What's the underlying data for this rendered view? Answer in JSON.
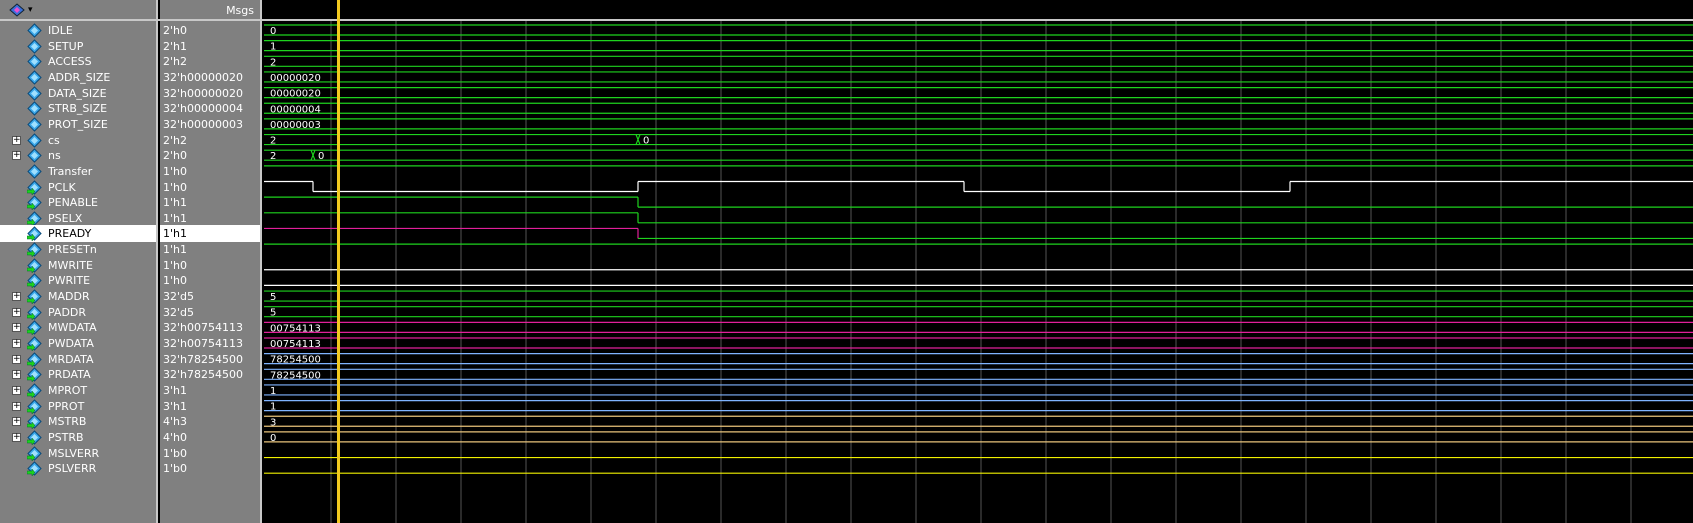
{
  "header": {
    "msgs_label": "Msgs",
    "toolbar_icon": "wave-window-icon"
  },
  "colors": {
    "background": "#000000",
    "panel": "#808080",
    "green": "#1ed31e",
    "white": "#ffffff",
    "magenta": "#e0209a",
    "cursor": "#f2c91f",
    "grid": "#555555"
  },
  "signals": [
    {
      "name": "IDLE",
      "value": "2'h0",
      "kind": "param",
      "wave_label": "0",
      "expandable": false,
      "color": "#1ed31e"
    },
    {
      "name": "SETUP",
      "value": "2'h1",
      "kind": "param",
      "wave_label": "1",
      "expandable": false,
      "color": "#1ed31e"
    },
    {
      "name": "ACCESS",
      "value": "2'h2",
      "kind": "param",
      "wave_label": "2",
      "expandable": false,
      "color": "#1ed31e"
    },
    {
      "name": "ADDR_SIZE",
      "value": "32'h00000020",
      "kind": "param",
      "wave_label": "00000020",
      "expandable": false,
      "color": "#1ed31e"
    },
    {
      "name": "DATA_SIZE",
      "value": "32'h00000020",
      "kind": "param",
      "wave_label": "00000020",
      "expandable": false,
      "color": "#1ed31e"
    },
    {
      "name": "STRB_SIZE",
      "value": "32'h00000004",
      "kind": "param",
      "wave_label": "00000004",
      "expandable": false,
      "color": "#1ed31e"
    },
    {
      "name": "PROT_SIZE",
      "value": "32'h00000003",
      "kind": "param",
      "wave_label": "00000003",
      "expandable": false,
      "color": "#1ed31e"
    },
    {
      "name": "cs",
      "value": "2'h2",
      "kind": "bus",
      "wave_label": "2",
      "expandable": true,
      "color": "#1ed31e",
      "change_label": "0"
    },
    {
      "name": "ns",
      "value": "2'h0",
      "kind": "bus",
      "wave_label": "2",
      "expandable": true,
      "color": "#1ed31e",
      "change_label": "0"
    },
    {
      "name": "Transfer",
      "value": "1'h0",
      "kind": "bit",
      "expandable": false,
      "color": "#1ed31e"
    },
    {
      "name": "PCLK",
      "value": "1'h0",
      "kind": "clock",
      "expandable": false,
      "color": "#ffffff"
    },
    {
      "name": "PENABLE",
      "value": "1'h1",
      "kind": "input",
      "expandable": false,
      "color": "#1ed31e"
    },
    {
      "name": "PSELX",
      "value": "1'h1",
      "kind": "input",
      "expandable": false,
      "color": "#1ed31e"
    },
    {
      "name": "PREADY",
      "value": "1'h1",
      "kind": "input",
      "expandable": false,
      "color": "#e0209a",
      "selected": true
    },
    {
      "name": "PRESETn",
      "value": "1'h1",
      "kind": "input",
      "expandable": false,
      "color": "#1ed31e"
    },
    {
      "name": "MWRITE",
      "value": "1'h0",
      "kind": "input",
      "expandable": false,
      "color": "#ffffff"
    },
    {
      "name": "PWRITE",
      "value": "1'h0",
      "kind": "input",
      "expandable": false,
      "color": "#ffffff"
    },
    {
      "name": "MADDR",
      "value": "32'd5",
      "kind": "input",
      "wave_label": "5",
      "expandable": true,
      "color": "#1ed31e"
    },
    {
      "name": "PADDR",
      "value": "32'd5",
      "kind": "input",
      "wave_label": "5",
      "expandable": true,
      "color": "#1ed31e"
    },
    {
      "name": "MWDATA",
      "value": "32'h00754113",
      "kind": "input",
      "wave_label": "00754113",
      "expandable": true,
      "color": "#e0209a"
    },
    {
      "name": "PWDATA",
      "value": "32'h00754113",
      "kind": "input",
      "wave_label": "00754113",
      "expandable": true,
      "color": "#e0209a"
    },
    {
      "name": "MRDATA",
      "value": "32'h78254500",
      "kind": "input",
      "wave_label": "78254500",
      "expandable": true,
      "color": "#7fb3ff"
    },
    {
      "name": "PRDATA",
      "value": "32'h78254500",
      "kind": "input",
      "wave_label": "78254500",
      "expandable": true,
      "color": "#7fb3ff"
    },
    {
      "name": "MPROT",
      "value": "3'h1",
      "kind": "input",
      "wave_label": "1",
      "expandable": true,
      "color": "#7fb3ff"
    },
    {
      "name": "PPROT",
      "value": "3'h1",
      "kind": "input",
      "wave_label": "1",
      "expandable": true,
      "color": "#7fb3ff"
    },
    {
      "name": "MSTRB",
      "value": "4'h3",
      "kind": "input",
      "wave_label": "3",
      "expandable": true,
      "color": "#e8c37a"
    },
    {
      "name": "PSTRB",
      "value": "4'h0",
      "kind": "input",
      "wave_label": "0",
      "expandable": true,
      "color": "#e8c37a"
    },
    {
      "name": "MSLVERR",
      "value": "1'b0",
      "kind": "input",
      "expandable": false,
      "color": "#f2f200"
    },
    {
      "name": "PSLVERR",
      "value": "1'b0",
      "kind": "input",
      "expandable": false,
      "color": "#f2f200"
    }
  ]
}
